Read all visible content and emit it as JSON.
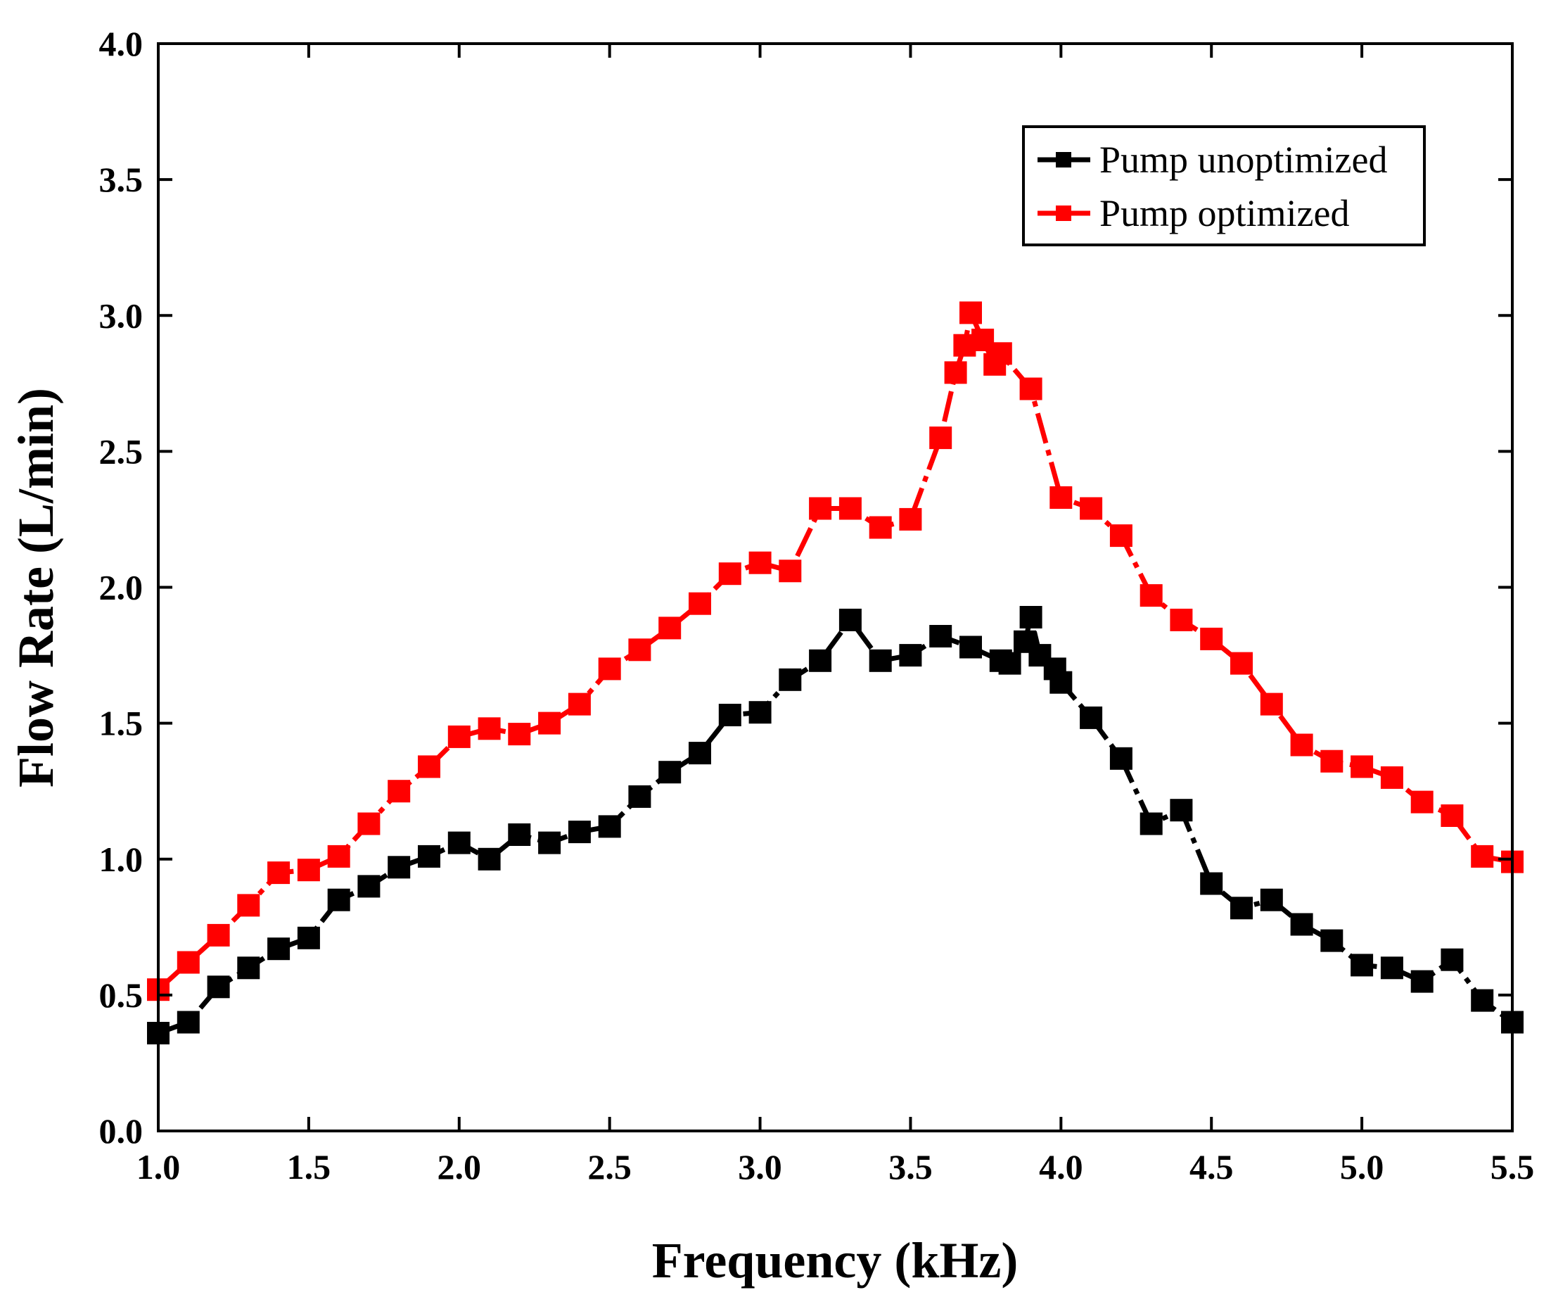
{
  "chart_data": {
    "type": "line",
    "title": "",
    "xlabel": "Frequency (kHz)",
    "ylabel": "Flow Rate (L/min)",
    "xlim": [
      1.0,
      5.5
    ],
    "ylim": [
      0.0,
      4.0
    ],
    "xticks": [
      "1.0",
      "1.5",
      "2.0",
      "2.5",
      "3.0",
      "3.5",
      "4.0",
      "4.5",
      "5.0",
      "5.5"
    ],
    "yticks": [
      "0.0",
      "0.5",
      "1.0",
      "1.5",
      "2.0",
      "2.5",
      "3.0",
      "3.5",
      "4.0"
    ],
    "grid": false,
    "legend_position": "top-right",
    "series": [
      {
        "name": "Pump unoptimized",
        "color": "#000000",
        "marker": "square",
        "x": [
          1.0,
          1.1,
          1.2,
          1.3,
          1.4,
          1.5,
          1.6,
          1.7,
          1.8,
          1.9,
          2.0,
          2.1,
          2.2,
          2.3,
          2.4,
          2.5,
          2.6,
          2.7,
          2.8,
          2.9,
          3.0,
          3.1,
          3.2,
          3.3,
          3.4,
          3.5,
          3.6,
          3.7,
          3.8,
          3.83,
          3.88,
          3.9,
          3.93,
          3.98,
          4.0,
          4.1,
          4.2,
          4.3,
          4.4,
          4.5,
          4.6,
          4.7,
          4.8,
          4.9,
          5.0,
          5.1,
          5.2,
          5.3,
          5.4,
          5.5
        ],
        "y": [
          0.36,
          0.4,
          0.53,
          0.6,
          0.67,
          0.71,
          0.85,
          0.9,
          0.97,
          1.01,
          1.06,
          1.0,
          1.09,
          1.06,
          1.1,
          1.12,
          1.23,
          1.32,
          1.39,
          1.53,
          1.54,
          1.66,
          1.73,
          1.88,
          1.73,
          1.75,
          1.82,
          1.78,
          1.73,
          1.72,
          1.8,
          1.89,
          1.75,
          1.7,
          1.65,
          1.52,
          1.37,
          1.13,
          1.18,
          0.91,
          0.82,
          0.85,
          0.76,
          0.7,
          0.61,
          0.6,
          0.55,
          0.63,
          0.48,
          0.4
        ]
      },
      {
        "name": "Pump optimized",
        "color": "#ff0000",
        "marker": "square",
        "x": [
          1.0,
          1.1,
          1.2,
          1.3,
          1.4,
          1.5,
          1.6,
          1.7,
          1.8,
          1.9,
          2.0,
          2.1,
          2.2,
          2.3,
          2.4,
          2.5,
          2.6,
          2.7,
          2.8,
          2.9,
          3.0,
          3.1,
          3.2,
          3.3,
          3.4,
          3.5,
          3.6,
          3.65,
          3.68,
          3.7,
          3.74,
          3.78,
          3.8,
          3.9,
          4.0,
          4.1,
          4.2,
          4.3,
          4.4,
          4.5,
          4.6,
          4.7,
          4.8,
          4.9,
          5.0,
          5.1,
          5.2,
          5.3,
          5.4,
          5.5
        ],
        "y": [
          0.52,
          0.62,
          0.72,
          0.83,
          0.95,
          0.96,
          1.01,
          1.13,
          1.25,
          1.34,
          1.45,
          1.48,
          1.46,
          1.5,
          1.57,
          1.7,
          1.77,
          1.85,
          1.94,
          2.05,
          2.09,
          2.06,
          2.29,
          2.29,
          2.22,
          2.25,
          2.55,
          2.79,
          2.89,
          3.01,
          2.91,
          2.82,
          2.86,
          2.73,
          2.33,
          2.29,
          2.19,
          1.97,
          1.88,
          1.81,
          1.72,
          1.57,
          1.42,
          1.36,
          1.34,
          1.3,
          1.21,
          1.16,
          1.01,
          0.99
        ]
      }
    ]
  }
}
